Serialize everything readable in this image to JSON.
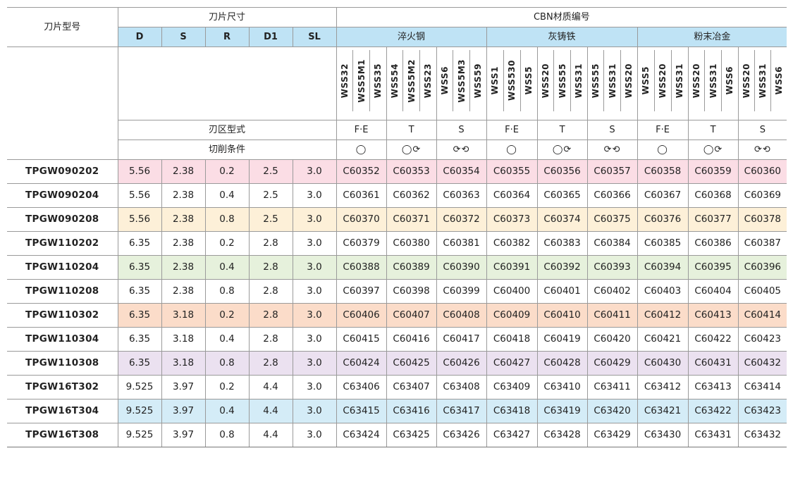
{
  "header": {
    "model_label": "刀片型号",
    "dims_label": "刀片尺寸",
    "cbn_label": "CBN材质编号",
    "dim_cols": [
      "D",
      "S",
      "R",
      "D1",
      "SL"
    ],
    "groups": [
      "淬火钢",
      "灰铸铁",
      "粉末冶金"
    ],
    "codes": [
      [
        "WSS32",
        "WSS5M1",
        "WSS35"
      ],
      [
        "WSS54",
        "WSS5M2",
        "WSS23"
      ],
      [
        "WSS6",
        "WSS5M3",
        "WSS59"
      ],
      [
        "WSS1",
        "WSS530",
        "WSS5"
      ],
      [
        "WSS20",
        "WSS55",
        "WSS31"
      ],
      [
        "WSS55",
        "WSS31",
        "WSS20"
      ],
      [
        "WSS5",
        "WSS20",
        "WSS31"
      ],
      [
        "WSS20",
        "WSS31",
        "WSS6"
      ],
      [
        "WSS20",
        "WSS31",
        "WSS6"
      ]
    ],
    "edge_type_label": "刃区型式",
    "edge_types": [
      "F·E",
      "T",
      "S",
      "F·E",
      "T",
      "S",
      "F·E",
      "T",
      "S"
    ],
    "cutting_label": "切削条件",
    "cutting_symbols": [
      "◯",
      "◯⟳",
      "⟳⟲",
      "◯",
      "◯⟳",
      "⟳⟲",
      "◯",
      "◯⟳",
      "⟳⟲"
    ]
  },
  "rows": [
    {
      "model": "TPGW090202",
      "dims": [
        "5.56",
        "2.38",
        "0.2",
        "2.5",
        "3.0"
      ],
      "cbn": [
        "C60352",
        "C60353",
        "C60354",
        "C60355",
        "C60356",
        "C60357",
        "C60358",
        "C60359",
        "C60360"
      ]
    },
    {
      "model": "TPGW090204",
      "dims": [
        "5.56",
        "2.38",
        "0.4",
        "2.5",
        "3.0"
      ],
      "cbn": [
        "C60361",
        "C60362",
        "C60363",
        "C60364",
        "C60365",
        "C60366",
        "C60367",
        "C60368",
        "C60369"
      ]
    },
    {
      "model": "TPGW090208",
      "dims": [
        "5.56",
        "2.38",
        "0.8",
        "2.5",
        "3.0"
      ],
      "cbn": [
        "C60370",
        "C60371",
        "C60372",
        "C60373",
        "C60374",
        "C60375",
        "C60376",
        "C60377",
        "C60378"
      ]
    },
    {
      "model": "TPGW110202",
      "dims": [
        "6.35",
        "2.38",
        "0.2",
        "2.8",
        "3.0"
      ],
      "cbn": [
        "C60379",
        "C60380",
        "C60381",
        "C60382",
        "C60383",
        "C60384",
        "C60385",
        "C60386",
        "C60387"
      ]
    },
    {
      "model": "TPGW110204",
      "dims": [
        "6.35",
        "2.38",
        "0.4",
        "2.8",
        "3.0"
      ],
      "cbn": [
        "C60388",
        "C60389",
        "C60390",
        "C60391",
        "C60392",
        "C60393",
        "C60394",
        "C60395",
        "C60396"
      ]
    },
    {
      "model": "TPGW110208",
      "dims": [
        "6.35",
        "2.38",
        "0.8",
        "2.8",
        "3.0"
      ],
      "cbn": [
        "C60397",
        "C60398",
        "C60399",
        "C60400",
        "C60401",
        "C60402",
        "C60403",
        "C60404",
        "C60405"
      ]
    },
    {
      "model": "TPGW110302",
      "dims": [
        "6.35",
        "3.18",
        "0.2",
        "2.8",
        "3.0"
      ],
      "cbn": [
        "C60406",
        "C60407",
        "C60408",
        "C60409",
        "C60410",
        "C60411",
        "C60412",
        "C60413",
        "C60414"
      ]
    },
    {
      "model": "TPGW110304",
      "dims": [
        "6.35",
        "3.18",
        "0.4",
        "2.8",
        "3.0"
      ],
      "cbn": [
        "C60415",
        "C60416",
        "C60417",
        "C60418",
        "C60419",
        "C60420",
        "C60421",
        "C60422",
        "C60423"
      ]
    },
    {
      "model": "TPGW110308",
      "dims": [
        "6.35",
        "3.18",
        "0.8",
        "2.8",
        "3.0"
      ],
      "cbn": [
        "C60424",
        "C60425",
        "C60426",
        "C60427",
        "C60428",
        "C60429",
        "C60430",
        "C60431",
        "C60432"
      ]
    },
    {
      "model": "TPGW16T302",
      "dims": [
        "9.525",
        "3.97",
        "0.2",
        "4.4",
        "3.0"
      ],
      "cbn": [
        "C63406",
        "C63407",
        "C63408",
        "C63409",
        "C63410",
        "C63411",
        "C63412",
        "C63413",
        "C63414"
      ]
    },
    {
      "model": "TPGW16T304",
      "dims": [
        "9.525",
        "3.97",
        "0.4",
        "4.4",
        "3.0"
      ],
      "cbn": [
        "C63415",
        "C63416",
        "C63417",
        "C63418",
        "C63419",
        "C63420",
        "C63421",
        "C63422",
        "C63423"
      ]
    },
    {
      "model": "TPGW16T308",
      "dims": [
        "9.525",
        "3.97",
        "0.8",
        "4.4",
        "3.0"
      ],
      "cbn": [
        "C63424",
        "C63425",
        "C63426",
        "C63427",
        "C63428",
        "C63429",
        "C63430",
        "C63431",
        "C63432"
      ]
    }
  ],
  "colors": {
    "header_blue": "#bfe3f5",
    "pink": "#fbdde5",
    "cream": "#fdf0d8",
    "green": "#e6f1dc",
    "salmon": "#fbdcc9",
    "lilac": "#ebe1f0",
    "sky": "#d4ecf7"
  }
}
